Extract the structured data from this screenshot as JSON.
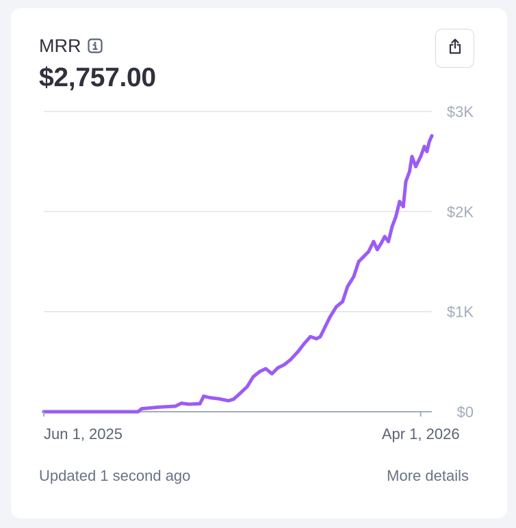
{
  "card": {
    "title": "MRR",
    "value": "$2,757.00",
    "info_icon": "info-icon",
    "share_icon": "share-icon",
    "updated_text": "Updated 1 second ago",
    "details_link": "More details"
  },
  "colors": {
    "line": "#9b5cf6",
    "grid": "#dde3e7",
    "axis": "#a3acb9",
    "tick_text": "#a3acb9",
    "xtick_text": "#5b6473"
  },
  "chart_data": {
    "type": "line",
    "title": "",
    "xlabel": "",
    "ylabel": "",
    "ylim": [
      0,
      3000
    ],
    "xlim": [
      "2025-06-01",
      "2026-04-10"
    ],
    "y_ticks": [
      {
        "value": 0,
        "label": "$0"
      },
      {
        "value": 1000,
        "label": "$1K"
      },
      {
        "value": 2000,
        "label": "$2K"
      },
      {
        "value": 3000,
        "label": "$3K"
      }
    ],
    "x_ticks": [
      {
        "value": "2025-06-01",
        "label": "Jun 1, 2025"
      },
      {
        "value": "2026-04-01",
        "label": "Apr 1, 2026"
      }
    ],
    "grid": true,
    "legend": "none",
    "series": [
      {
        "values": [
          [
            "2025-06-01",
            0
          ],
          [
            "2025-07-01",
            0
          ],
          [
            "2025-08-01",
            0
          ],
          [
            "2025-08-16",
            0
          ],
          [
            "2025-08-19",
            30
          ],
          [
            "2025-09-01",
            45
          ],
          [
            "2025-09-15",
            55
          ],
          [
            "2025-09-20",
            85
          ],
          [
            "2025-09-26",
            75
          ],
          [
            "2025-10-05",
            80
          ],
          [
            "2025-10-08",
            155
          ],
          [
            "2025-10-13",
            140
          ],
          [
            "2025-10-20",
            130
          ],
          [
            "2025-10-28",
            110
          ],
          [
            "2025-11-01",
            125
          ],
          [
            "2025-11-06",
            180
          ],
          [
            "2025-11-12",
            250
          ],
          [
            "2025-11-17",
            350
          ],
          [
            "2025-11-22",
            400
          ],
          [
            "2025-11-27",
            430
          ],
          [
            "2025-12-02",
            380
          ],
          [
            "2025-12-07",
            440
          ],
          [
            "2025-12-12",
            470
          ],
          [
            "2025-12-17",
            520
          ],
          [
            "2025-12-23",
            600
          ],
          [
            "2025-12-28",
            680
          ],
          [
            "2026-01-02",
            750
          ],
          [
            "2026-01-07",
            730
          ],
          [
            "2026-01-10",
            750
          ],
          [
            "2026-01-14",
            850
          ],
          [
            "2026-01-18",
            950
          ],
          [
            "2026-01-23",
            1050
          ],
          [
            "2026-01-28",
            1100
          ],
          [
            "2026-02-01",
            1250
          ],
          [
            "2026-02-06",
            1350
          ],
          [
            "2026-02-10",
            1500
          ],
          [
            "2026-02-14",
            1550
          ],
          [
            "2026-02-18",
            1600
          ],
          [
            "2026-02-22",
            1700
          ],
          [
            "2026-02-25",
            1620
          ],
          [
            "2026-02-28",
            1680
          ],
          [
            "2026-03-03",
            1750
          ],
          [
            "2026-03-06",
            1700
          ],
          [
            "2026-03-09",
            1850
          ],
          [
            "2026-03-12",
            1950
          ],
          [
            "2026-03-15",
            2100
          ],
          [
            "2026-03-18",
            2050
          ],
          [
            "2026-03-20",
            2300
          ],
          [
            "2026-03-23",
            2400
          ],
          [
            "2026-03-25",
            2550
          ],
          [
            "2026-03-28",
            2450
          ],
          [
            "2026-04-01",
            2550
          ],
          [
            "2026-04-04",
            2650
          ],
          [
            "2026-04-06",
            2600
          ],
          [
            "2026-04-08",
            2700
          ],
          [
            "2026-04-10",
            2757
          ]
        ]
      }
    ]
  }
}
